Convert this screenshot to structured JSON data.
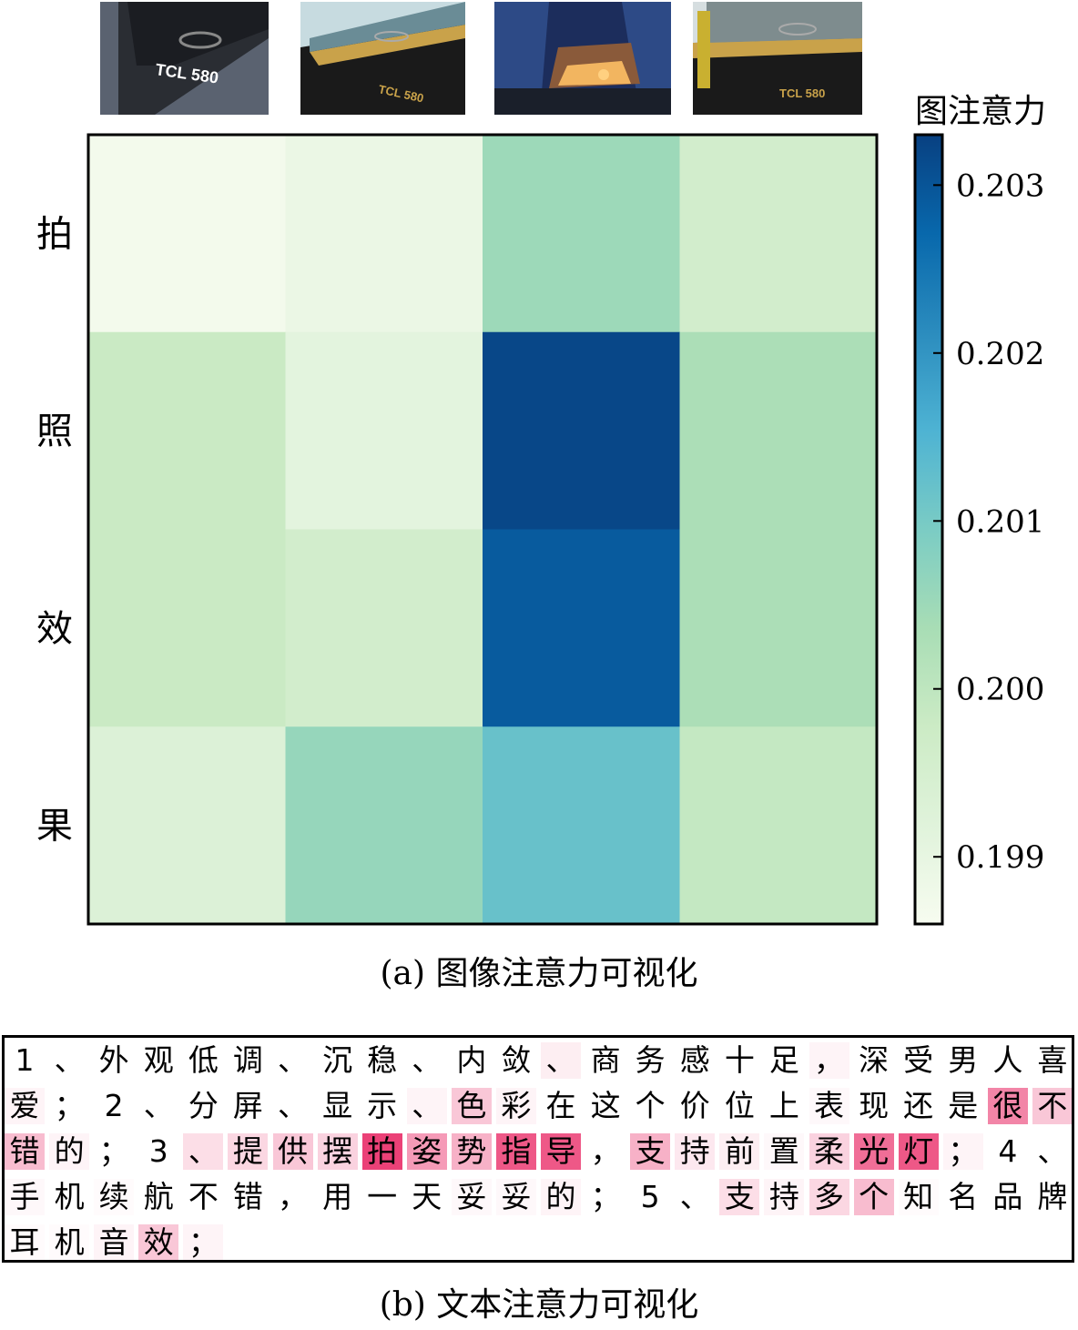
{
  "thumbnails": [
    {
      "name": "phone-photo-1",
      "label": "TCL 580"
    },
    {
      "name": "phone-photo-2",
      "label": "TCL 580"
    },
    {
      "name": "building-photo",
      "label": ""
    },
    {
      "name": "phone-photo-3",
      "label": "TCL 580"
    }
  ],
  "chart_data": {
    "type": "heatmap",
    "rows": [
      "拍",
      "照",
      "效",
      "果"
    ],
    "columns": 4,
    "values": [
      [
        0.1987,
        0.1989,
        0.2005,
        0.1996
      ],
      [
        0.1998,
        0.1991,
        0.2032,
        0.2003
      ],
      [
        0.1998,
        0.1996,
        0.2029,
        0.2003
      ],
      [
        0.1993,
        0.2006,
        0.2012,
        0.1999
      ]
    ],
    "colorbar": {
      "label": "图注意力",
      "min": 0.1986,
      "max": 0.2033,
      "ticks": [
        0.199,
        0.2,
        0.201,
        0.202,
        0.203
      ],
      "tick_labels": [
        "0.199",
        "0.200",
        "0.201",
        "0.202",
        "0.203"
      ],
      "colormap": "GnBu"
    }
  },
  "captions": {
    "image": "(a) 图像注意力可视化",
    "text": "(b) 文本注意力可视化"
  },
  "text_attention": {
    "highlight_color": "#e8205f",
    "lines": [
      [
        [
          "1",
          0
        ],
        [
          "、",
          0
        ],
        [
          "外",
          0
        ],
        [
          "观",
          0
        ],
        [
          "低",
          0
        ],
        [
          "调",
          0
        ],
        [
          "、",
          0
        ],
        [
          "沉",
          0
        ],
        [
          "稳",
          0
        ],
        [
          "、",
          0
        ],
        [
          "内",
          0
        ],
        [
          "敛",
          0
        ],
        [
          "、",
          0.08
        ],
        [
          "商",
          0
        ],
        [
          "务",
          0
        ],
        [
          "感",
          0
        ],
        [
          "十",
          0
        ],
        [
          "足",
          0
        ],
        [
          "，",
          0.05
        ],
        [
          "深",
          0
        ],
        [
          "受",
          0
        ],
        [
          "男",
          0
        ],
        [
          "人",
          0
        ],
        [
          "喜",
          0
        ]
      ],
      [
        [
          "爱",
          0.05
        ],
        [
          "；",
          0
        ],
        [
          "2",
          0
        ],
        [
          "、",
          0
        ],
        [
          "分",
          0
        ],
        [
          "屏",
          0
        ],
        [
          "、",
          0
        ],
        [
          "显",
          0
        ],
        [
          "示",
          0
        ],
        [
          "、",
          0.05
        ],
        [
          "色",
          0.25
        ],
        [
          "彩",
          0.05
        ],
        [
          "在",
          0
        ],
        [
          "这",
          0
        ],
        [
          "个",
          0
        ],
        [
          "价",
          0
        ],
        [
          "位",
          0
        ],
        [
          "上",
          0
        ],
        [
          "表",
          0.03
        ],
        [
          "现",
          0
        ],
        [
          "还",
          0
        ],
        [
          "是",
          0
        ],
        [
          "很",
          0.55
        ],
        [
          "不",
          0.25
        ]
      ],
      [
        [
          "错",
          0.3
        ],
        [
          "的",
          0.05
        ],
        [
          "；",
          0
        ],
        [
          "3",
          0
        ],
        [
          "、",
          0.15
        ],
        [
          "提",
          0.18
        ],
        [
          "供",
          0.25
        ],
        [
          "摆",
          0.2
        ],
        [
          "拍",
          0.85
        ],
        [
          "姿",
          0.45
        ],
        [
          "势",
          0.35
        ],
        [
          "指",
          0.75
        ],
        [
          "导",
          0.75
        ],
        [
          "，",
          0
        ],
        [
          "支",
          0.35
        ],
        [
          "持",
          0.1
        ],
        [
          "前",
          0.08
        ],
        [
          "置",
          0.03
        ],
        [
          "柔",
          0.2
        ],
        [
          "光",
          0.65
        ],
        [
          "灯",
          0.75
        ],
        [
          "；",
          0.05
        ],
        [
          "4",
          0
        ],
        [
          "、",
          0
        ]
      ],
      [
        [
          "手",
          0.03
        ],
        [
          "机",
          0
        ],
        [
          "续",
          0.02
        ],
        [
          "航",
          0
        ],
        [
          "不",
          0
        ],
        [
          "错",
          0
        ],
        [
          "，",
          0
        ],
        [
          "用",
          0
        ],
        [
          "一",
          0
        ],
        [
          "天",
          0
        ],
        [
          "妥",
          0.03
        ],
        [
          "妥",
          0.03
        ],
        [
          "的",
          0.05
        ],
        [
          "；",
          0
        ],
        [
          "5",
          0
        ],
        [
          "、",
          0
        ],
        [
          "支",
          0.15
        ],
        [
          "持",
          0.05
        ],
        [
          "多",
          0.18
        ],
        [
          "个",
          0.3
        ],
        [
          "知",
          0.02
        ],
        [
          "名",
          0
        ],
        [
          "品",
          0
        ],
        [
          "牌",
          0
        ]
      ],
      [
        [
          "耳",
          0.02
        ],
        [
          "机",
          0.02
        ],
        [
          "音",
          0.05
        ],
        [
          "效",
          0.25
        ],
        [
          "；",
          0.05
        ]
      ]
    ]
  }
}
